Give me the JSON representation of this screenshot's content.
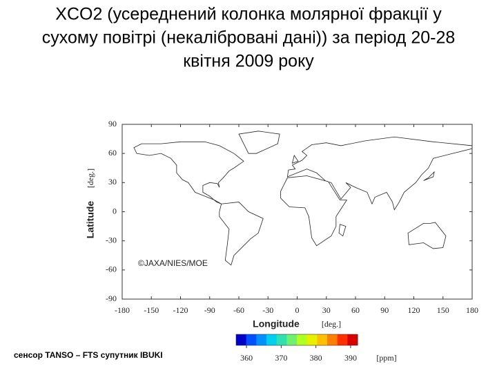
{
  "title_lines": [
    "XCO2 (усереднений колонка молярної фракції у",
    "сухому повітрі (некалібровані дані)) за період 20-28",
    "квітня 2009 року"
  ],
  "map": {
    "xlim": [
      -180,
      180
    ],
    "ylim": [
      -90,
      90
    ],
    "xticks": [
      -180,
      -150,
      -120,
      -90,
      -60,
      -30,
      0,
      30,
      60,
      90,
      120,
      150,
      180
    ],
    "yticks": [
      90,
      60,
      30,
      0,
      -30,
      -60,
      -90
    ],
    "x_label": "Longitude",
    "x_unit": "[deg.]",
    "y_label": "Latitude",
    "y_unit": "[deg.]",
    "copyright": "©JAXA/NIES/MOE",
    "colorbar": {
      "range": [
        357,
        392
      ],
      "ticks": [
        360,
        370,
        380,
        390
      ],
      "unit": "[ppm]",
      "colors": [
        "#0000c8",
        "#0050ff",
        "#0090ff",
        "#00d0f0",
        "#30e0b0",
        "#70f070",
        "#b0ff20",
        "#e8f000",
        "#ffc000",
        "#ff8000",
        "#ff3000",
        "#d80000"
      ]
    }
  },
  "caption": "сенсор TANSO – FTS супутник IBUKI"
}
